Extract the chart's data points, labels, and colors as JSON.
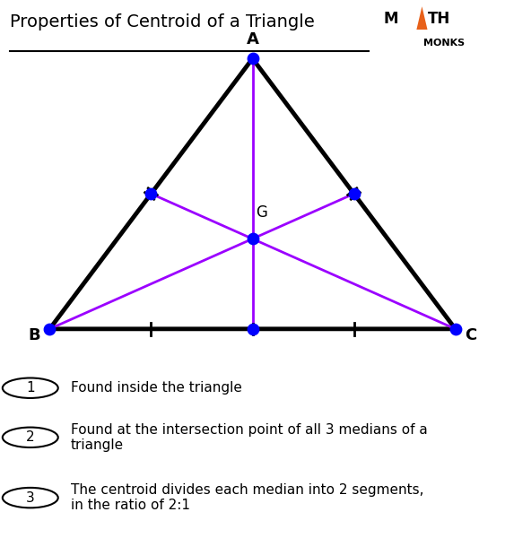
{
  "title": "Properties of Centroid of a Triangle",
  "triangle": {
    "A": [
      0.5,
      0.92
    ],
    "B": [
      0.05,
      0.32
    ],
    "C": [
      0.95,
      0.32
    ]
  },
  "triangle_color": "#000000",
  "triangle_linewidth": 3.5,
  "median_color": "#9B00FF",
  "median_linewidth": 2.0,
  "dot_color": "#0000FF",
  "dot_size": 80,
  "vertex_labels": {
    "A": [
      0.5,
      0.945
    ],
    "B": [
      0.03,
      0.305
    ],
    "C": [
      0.97,
      0.305
    ]
  },
  "centroid_label": [
    0.508,
    0.578
  ],
  "centroid_label_text": "G",
  "properties": [
    "Found inside the triangle",
    "Found at the intersection point of all 3 medians of a\ntriangle",
    "The centroid divides each median into 2 segments,\nin the ratio of 2:1"
  ],
  "background_color": "#ffffff",
  "logo_triangle_color": "#E8611A",
  "text_color": "#000000"
}
